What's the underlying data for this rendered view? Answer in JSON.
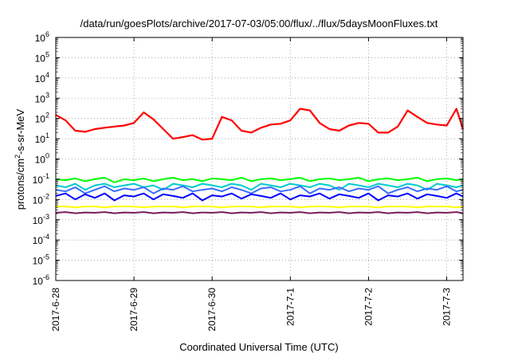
{
  "chart_data": {
    "type": "line",
    "title": "/data/run/goesPlots/archive/2017-07-03/05:00/flux/../flux/5daysMoonFluxes.txt",
    "xlabel": "Coordinated Universal Time (UTC)",
    "ylabel_parts": [
      "protons/cm",
      "2",
      "-s-sr-MeV"
    ],
    "y_scale": "log",
    "ylim": [
      1e-06,
      1000000.0
    ],
    "y_ticks": [
      {
        "value": 1e-06,
        "base": "10",
        "exp": "-6"
      },
      {
        "value": 1e-05,
        "base": "10",
        "exp": "-5"
      },
      {
        "value": 0.0001,
        "base": "10",
        "exp": "-4"
      },
      {
        "value": 0.001,
        "base": "10",
        "exp": "-3"
      },
      {
        "value": 0.01,
        "base": "10",
        "exp": "-2"
      },
      {
        "value": 0.1,
        "base": "10",
        "exp": "-1"
      },
      {
        "value": 1,
        "base": "10",
        "exp": "0"
      },
      {
        "value": 10,
        "base": "10",
        "exp": "1"
      },
      {
        "value": 100,
        "base": "10",
        "exp": "2"
      },
      {
        "value": 1000,
        "base": "10",
        "exp": "3"
      },
      {
        "value": 10000,
        "base": "10",
        "exp": "4"
      },
      {
        "value": 100000,
        "base": "10",
        "exp": "5"
      },
      {
        "value": 1000000,
        "base": "10",
        "exp": "6"
      }
    ],
    "x_ticks": [
      "2017-6-28",
      "2017-6-29",
      "2017-6-30",
      "2017-7-1",
      "2017-7-2",
      "2017-7-3"
    ],
    "xlim": [
      "2017-06-28T00:00",
      "2017-07-03T05:00"
    ],
    "grid": true,
    "x": [
      "2017-06-28T00:00",
      "2017-06-28T03:00",
      "2017-06-28T06:00",
      "2017-06-28T09:00",
      "2017-06-28T12:00",
      "2017-06-28T15:00",
      "2017-06-28T18:00",
      "2017-06-28T21:00",
      "2017-06-29T00:00",
      "2017-06-29T03:00",
      "2017-06-29T06:00",
      "2017-06-29T09:00",
      "2017-06-29T12:00",
      "2017-06-29T15:00",
      "2017-06-29T18:00",
      "2017-06-29T21:00",
      "2017-06-30T00:00",
      "2017-06-30T03:00",
      "2017-06-30T06:00",
      "2017-06-30T09:00",
      "2017-06-30T12:00",
      "2017-06-30T15:00",
      "2017-06-30T18:00",
      "2017-06-30T21:00",
      "2017-07-01T00:00",
      "2017-07-01T03:00",
      "2017-07-01T06:00",
      "2017-07-01T09:00",
      "2017-07-01T12:00",
      "2017-07-01T15:00",
      "2017-07-01T18:00",
      "2017-07-01T21:00",
      "2017-07-02T00:00",
      "2017-07-02T03:00",
      "2017-07-02T06:00",
      "2017-07-02T09:00",
      "2017-07-02T12:00",
      "2017-07-02T15:00",
      "2017-07-02T18:00",
      "2017-07-02T21:00",
      "2017-07-03T00:00",
      "2017-07-03T03:00",
      "2017-07-03T05:00"
    ],
    "series": [
      {
        "color": "#ff0000",
        "values": [
          150,
          80,
          25,
          22,
          30,
          35,
          40,
          45,
          60,
          200,
          90,
          30,
          10,
          12,
          15,
          9,
          10,
          120,
          80,
          25,
          20,
          35,
          50,
          55,
          80,
          300,
          250,
          60,
          30,
          25,
          45,
          60,
          55,
          20,
          20,
          40,
          250,
          120,
          60,
          50,
          45,
          300,
          30
        ]
      },
      {
        "color": "#00ff00",
        "values": [
          0.1,
          0.09,
          0.11,
          0.08,
          0.1,
          0.12,
          0.07,
          0.1,
          0.09,
          0.11,
          0.08,
          0.1,
          0.12,
          0.09,
          0.1,
          0.08,
          0.11,
          0.1,
          0.09,
          0.12,
          0.08,
          0.1,
          0.11,
          0.09,
          0.1,
          0.12,
          0.08,
          0.1,
          0.11,
          0.09,
          0.1,
          0.12,
          0.08,
          0.1,
          0.11,
          0.09,
          0.1,
          0.12,
          0.08,
          0.1,
          0.11,
          0.09,
          0.1
        ]
      },
      {
        "color": "#00cccc",
        "values": [
          0.05,
          0.04,
          0.06,
          0.03,
          0.05,
          0.06,
          0.04,
          0.05,
          0.06,
          0.04,
          0.05,
          0.03,
          0.06,
          0.05,
          0.04,
          0.06,
          0.05,
          0.04,
          0.06,
          0.05,
          0.03,
          0.06,
          0.05,
          0.04,
          0.06,
          0.05,
          0.04,
          0.06,
          0.05,
          0.03,
          0.06,
          0.05,
          0.04,
          0.06,
          0.05,
          0.04,
          0.06,
          0.05,
          0.03,
          0.06,
          0.05,
          0.04,
          0.05
        ]
      },
      {
        "color": "#3a6cff",
        "values": [
          0.03,
          0.025,
          0.04,
          0.02,
          0.03,
          0.045,
          0.025,
          0.035,
          0.03,
          0.04,
          0.02,
          0.035,
          0.03,
          0.045,
          0.025,
          0.03,
          0.035,
          0.025,
          0.04,
          0.03,
          0.02,
          0.035,
          0.04,
          0.025,
          0.03,
          0.045,
          0.02,
          0.035,
          0.03,
          0.04,
          0.025,
          0.035,
          0.03,
          0.045,
          0.02,
          0.03,
          0.04,
          0.025,
          0.035,
          0.03,
          0.045,
          0.025,
          0.03
        ]
      },
      {
        "color": "#0000ff",
        "values": [
          0.015,
          0.02,
          0.01,
          0.018,
          0.012,
          0.02,
          0.009,
          0.016,
          0.014,
          0.02,
          0.01,
          0.018,
          0.015,
          0.012,
          0.02,
          0.009,
          0.016,
          0.014,
          0.02,
          0.011,
          0.018,
          0.015,
          0.012,
          0.02,
          0.01,
          0.016,
          0.014,
          0.02,
          0.011,
          0.018,
          0.015,
          0.012,
          0.02,
          0.009,
          0.016,
          0.014,
          0.02,
          0.011,
          0.018,
          0.015,
          0.012,
          0.02,
          0.014
        ]
      },
      {
        "color": "#ffff00",
        "values": [
          0.0045,
          0.0045,
          0.004,
          0.0045,
          0.0045,
          0.004,
          0.0045,
          0.0045,
          0.0045,
          0.004,
          0.0045,
          0.0045,
          0.0045,
          0.004,
          0.0045,
          0.0045,
          0.0045,
          0.004,
          0.0045,
          0.0045,
          0.0045,
          0.004,
          0.0045,
          0.0045,
          0.0045,
          0.004,
          0.0045,
          0.0045,
          0.0045,
          0.004,
          0.0045,
          0.0045,
          0.0045,
          0.004,
          0.0045,
          0.0045,
          0.0045,
          0.004,
          0.0045,
          0.0045,
          0.0045,
          0.004,
          0.0045
        ]
      },
      {
        "color": "#7a1e5a",
        "values": [
          0.0022,
          0.0024,
          0.0021,
          0.0023,
          0.0022,
          0.0024,
          0.0021,
          0.0023,
          0.0022,
          0.0024,
          0.0021,
          0.0023,
          0.0022,
          0.0024,
          0.0021,
          0.0023,
          0.0022,
          0.0024,
          0.0021,
          0.0023,
          0.0022,
          0.0024,
          0.0021,
          0.0023,
          0.0022,
          0.0024,
          0.0021,
          0.0023,
          0.0022,
          0.0024,
          0.0021,
          0.0023,
          0.0022,
          0.0024,
          0.0021,
          0.0023,
          0.0022,
          0.0024,
          0.0021,
          0.0023,
          0.0022,
          0.0024,
          0.0021
        ]
      }
    ]
  }
}
